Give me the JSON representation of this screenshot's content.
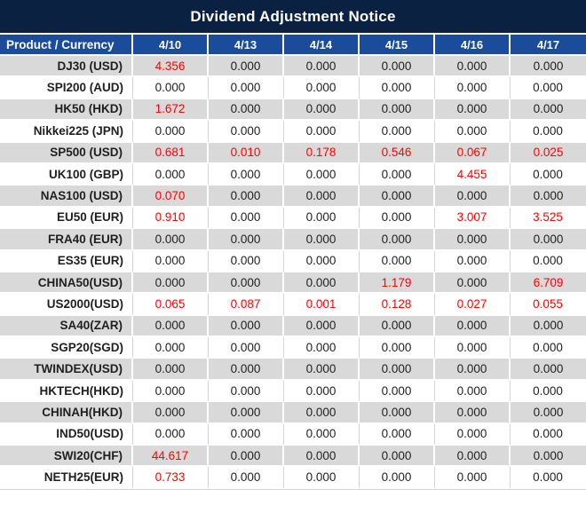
{
  "title": "Dividend Adjustment Notice",
  "colors": {
    "title_bar_bg": "#0a2142",
    "header_bg": "#1b4b9b",
    "row_alt_bg": "#d9d9d9",
    "row_bg": "#ffffff",
    "header_text": "#ffffff",
    "text": "#1f1f1f",
    "highlight_text": "#ff0000",
    "gridline": "#d4d4d4",
    "separator": "#ffffff"
  },
  "chart_data": {
    "type": "table",
    "title": "Dividend Adjustment Notice",
    "columns": [
      "Product / Currency",
      "4/10",
      "4/13",
      "4/14",
      "4/15",
      "4/16",
      "4/17"
    ],
    "highlight_rule": "non-zero dividend adjustment values are rendered in red",
    "stripe_rule": "rows alternate gray/white starting with gray",
    "rows": [
      {
        "product": "DJ30 (USD)",
        "values": [
          "4.356",
          "0.000",
          "0.000",
          "0.000",
          "0.000",
          "0.000"
        ]
      },
      {
        "product": "SPI200 (AUD)",
        "values": [
          "0.000",
          "0.000",
          "0.000",
          "0.000",
          "0.000",
          "0.000"
        ]
      },
      {
        "product": "HK50 (HKD)",
        "values": [
          "1.672",
          "0.000",
          "0.000",
          "0.000",
          "0.000",
          "0.000"
        ]
      },
      {
        "product": "Nikkei225 (JPN)",
        "values": [
          "0.000",
          "0.000",
          "0.000",
          "0.000",
          "0.000",
          "0.000"
        ]
      },
      {
        "product": "SP500 (USD)",
        "values": [
          "0.681",
          "0.010",
          "0.178",
          "0.546",
          "0.067",
          "0.025"
        ]
      },
      {
        "product": "UK100 (GBP)",
        "values": [
          "0.000",
          "0.000",
          "0.000",
          "0.000",
          "4.455",
          "0.000"
        ]
      },
      {
        "product": "NAS100 (USD)",
        "values": [
          "0.070",
          "0.000",
          "0.000",
          "0.000",
          "0.000",
          "0.000"
        ]
      },
      {
        "product": "EU50 (EUR)",
        "values": [
          "0.910",
          "0.000",
          "0.000",
          "0.000",
          "3.007",
          "3.525"
        ]
      },
      {
        "product": "FRA40 (EUR)",
        "values": [
          "0.000",
          "0.000",
          "0.000",
          "0.000",
          "0.000",
          "0.000"
        ]
      },
      {
        "product": "ES35 (EUR)",
        "values": [
          "0.000",
          "0.000",
          "0.000",
          "0.000",
          "0.000",
          "0.000"
        ]
      },
      {
        "product": "CHINA50(USD)",
        "values": [
          "0.000",
          "0.000",
          "0.000",
          "1.179",
          "0.000",
          "6.709"
        ]
      },
      {
        "product": "US2000(USD)",
        "values": [
          "0.065",
          "0.087",
          "0.001",
          "0.128",
          "0.027",
          "0.055"
        ]
      },
      {
        "product": "SA40(ZAR)",
        "values": [
          "0.000",
          "0.000",
          "0.000",
          "0.000",
          "0.000",
          "0.000"
        ]
      },
      {
        "product": "SGP20(SGD)",
        "values": [
          "0.000",
          "0.000",
          "0.000",
          "0.000",
          "0.000",
          "0.000"
        ]
      },
      {
        "product": "TWINDEX(USD)",
        "values": [
          "0.000",
          "0.000",
          "0.000",
          "0.000",
          "0.000",
          "0.000"
        ]
      },
      {
        "product": "HKTECH(HKD)",
        "values": [
          "0.000",
          "0.000",
          "0.000",
          "0.000",
          "0.000",
          "0.000"
        ]
      },
      {
        "product": "CHINAH(HKD)",
        "values": [
          "0.000",
          "0.000",
          "0.000",
          "0.000",
          "0.000",
          "0.000"
        ]
      },
      {
        "product": "IND50(USD)",
        "values": [
          "0.000",
          "0.000",
          "0.000",
          "0.000",
          "0.000",
          "0.000"
        ]
      },
      {
        "product": "SWI20(CHF)",
        "values": [
          "44.617",
          "0.000",
          "0.000",
          "0.000",
          "0.000",
          "0.000"
        ]
      },
      {
        "product": "NETH25(EUR)",
        "values": [
          "0.733",
          "0.000",
          "0.000",
          "0.000",
          "0.000",
          "0.000"
        ]
      }
    ]
  }
}
